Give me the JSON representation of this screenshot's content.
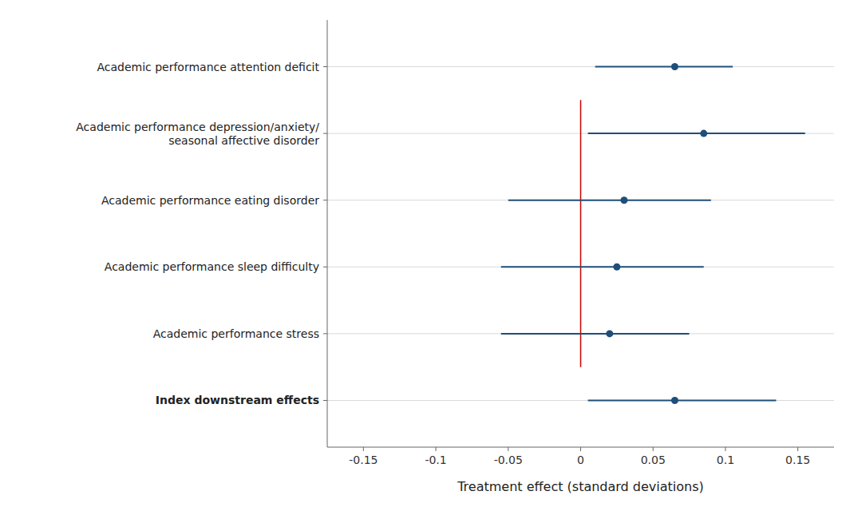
{
  "chart_data": {
    "type": "forest",
    "categories": [
      "Academic performance attention deficit",
      "Academic performance depression/anxiety/\nseasonal affective disorder",
      "Academic performance eating disorder",
      "Academic performance sleep difficulty",
      "Academic performance stress",
      "Index downstream effects"
    ],
    "values": [
      0.065,
      0.085,
      0.03,
      0.025,
      0.02,
      0.065
    ],
    "ci_low": [
      0.01,
      0.005,
      -0.05,
      -0.055,
      -0.055,
      0.005
    ],
    "ci_high": [
      0.105,
      0.155,
      0.09,
      0.085,
      0.075,
      0.135
    ],
    "color": "#1f4e79",
    "reference_line": {
      "value": 0.0,
      "color": "#cc0000"
    },
    "xlim": [
      -0.175,
      0.175
    ],
    "xticks": [
      -0.15,
      -0.1,
      -0.05,
      0,
      0.05,
      0.1,
      0.15
    ],
    "xlabel": "Treatment effect (standard deviations)",
    "grid": true
  }
}
